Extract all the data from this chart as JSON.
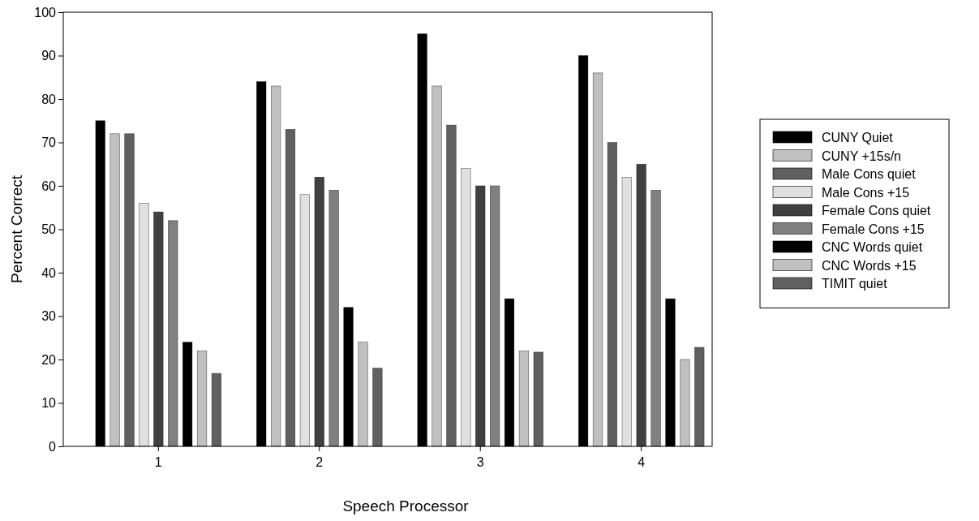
{
  "chart_data": {
    "type": "bar",
    "xlabel": "Speech Processor",
    "ylabel": "Percent Correct",
    "categories": [
      "1",
      "2",
      "3",
      "4"
    ],
    "ylim": [
      0,
      100
    ],
    "yticks": [
      0,
      10,
      20,
      30,
      40,
      50,
      60,
      70,
      80,
      90,
      100
    ],
    "grid": false,
    "legend": "right",
    "series": [
      {
        "name": "CUNY Quiet",
        "color": "#000000",
        "values": [
          75,
          84,
          95,
          90
        ]
      },
      {
        "name": "CUNY +15s/n",
        "color": "#c0c0c0",
        "values": [
          72,
          83,
          83,
          86
        ]
      },
      {
        "name": "Male Cons quiet",
        "color": "#606060",
        "values": [
          72,
          73,
          74,
          70
        ]
      },
      {
        "name": "Male Cons +15",
        "color": "#e0e0e0",
        "values": [
          56,
          58,
          64,
          62
        ]
      },
      {
        "name": "Female Cons quiet",
        "color": "#404040",
        "values": [
          54,
          62,
          60,
          65
        ]
      },
      {
        "name": "Female Cons +15",
        "color": "#808080",
        "values": [
          52,
          59,
          60,
          59
        ]
      },
      {
        "name": "CNC Words quiet",
        "color": "#000000",
        "values": [
          24,
          32,
          34,
          34
        ]
      },
      {
        "name": "CNC Words +15",
        "color": "#c0c0c0",
        "values": [
          22,
          24,
          22,
          20
        ]
      },
      {
        "name": "TIMIT quiet",
        "color": "#606060",
        "values": [
          16.8,
          18,
          21.7,
          22.8
        ]
      }
    ]
  }
}
